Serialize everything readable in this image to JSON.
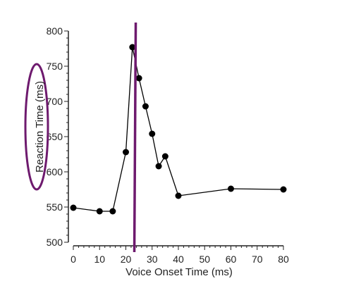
{
  "chart_data": {
    "type": "line",
    "xlabel": "Voice Onset Time (ms)",
    "ylabel": "Reaction Time (ms)",
    "xlim": [
      0,
      80
    ],
    "ylim": [
      500,
      800
    ],
    "x_ticks": [
      0,
      10,
      20,
      30,
      40,
      50,
      60,
      70,
      80
    ],
    "y_ticks": [
      500,
      550,
      600,
      650,
      700,
      750,
      800
    ],
    "grid": false,
    "series": [
      {
        "color": "#000000",
        "x": [
          0,
          10,
          15,
          20,
          22.5,
          25,
          27.5,
          30,
          32.5,
          35,
          40,
          60,
          80
        ],
        "y": [
          549,
          544,
          544,
          628,
          777,
          733,
          693,
          654,
          608,
          622,
          566,
          576,
          575
        ]
      }
    ],
    "annotations": [
      {
        "type": "vertical-line",
        "x": 23.5,
        "color": "#6e1a6e"
      },
      {
        "type": "ellipse",
        "target": "y-axis-label",
        "color": "#6e1a6e"
      }
    ]
  }
}
